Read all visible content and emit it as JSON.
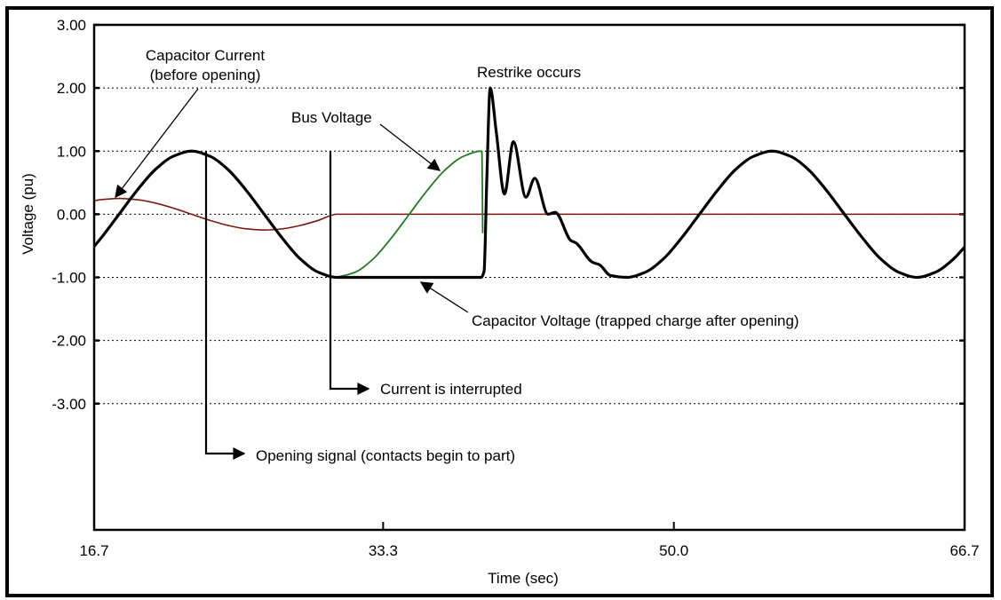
{
  "chart_data": {
    "type": "line",
    "title": "",
    "xlabel": "Time (sec)",
    "ylabel": "Voltage (pu)",
    "xlim": [
      16.7,
      66.7
    ],
    "ylim": [
      -5,
      3
    ],
    "grid": true,
    "x_ticks": [
      "16.7",
      "33.3",
      "50.0",
      "66.7"
    ],
    "x_tick_values": [
      16.7,
      33.3,
      50.0,
      66.7
    ],
    "y_ticks": [
      "3.00",
      "2.00",
      "1.00",
      "0.00",
      "-1.00",
      "-2.00",
      "-3.00"
    ],
    "y_tick_values": [
      3,
      2,
      1,
      0,
      -1,
      -2,
      -3
    ],
    "series": [
      {
        "id": "capacitor-voltage",
        "color": "#000000",
        "x": [
          16.7,
          17.09,
          18.13,
          19.17,
          20.22,
          21.26,
          22.3,
          23.34,
          24.38,
          25.43,
          26.47,
          27.51,
          28.55,
          29.59,
          30.64,
          38.93,
          39.1,
          39.25,
          39.45,
          39.8,
          40.27,
          40.78,
          41.5,
          42.01,
          42.77,
          43.18,
          44.1,
          44.35,
          45.32,
          45.73,
          46.35,
          47.3,
          48.35,
          49.39,
          50.43,
          51.47,
          52.51,
          53.55,
          54.6,
          55.64,
          56.68,
          57.72,
          58.76,
          59.8,
          60.85,
          61.89,
          62.93,
          63.97,
          65.01,
          66.06,
          66.7
        ],
        "y": [
          -0.51,
          -0.38,
          0,
          0.38,
          0.71,
          0.92,
          1,
          0.92,
          0.71,
          0.38,
          0,
          -0.38,
          -0.71,
          -0.92,
          -1,
          -1,
          -0.9,
          0.5,
          2.0,
          1.3,
          0.32,
          1.15,
          0.27,
          0.57,
          0.0,
          0.03,
          -0.42,
          -0.45,
          -0.76,
          -0.8,
          -0.97,
          -1.0,
          -0.92,
          -0.71,
          -0.38,
          0,
          0.38,
          0.71,
          0.92,
          1,
          0.92,
          0.71,
          0.38,
          0,
          -0.38,
          -0.71,
          -0.92,
          -1,
          -0.92,
          -0.71,
          -0.52
        ]
      },
      {
        "id": "bus-voltage",
        "color": "#1f7a1f",
        "x": [
          30.64,
          31.68,
          32.72,
          33.76,
          34.8,
          35.84,
          36.89,
          37.93,
          38.97,
          39.02
        ],
        "y": [
          -1,
          -0.92,
          -0.71,
          -0.38,
          0,
          0.38,
          0.71,
          0.92,
          1.0,
          -0.3
        ]
      },
      {
        "id": "capacitor-current",
        "color": "#7a1a10",
        "x": [
          16.7,
          17.09,
          18.13,
          19.17,
          20.22,
          21.26,
          22.3,
          23.34,
          24.38,
          25.43,
          26.47,
          27.51,
          28.55,
          29.59,
          30.64,
          66.7
        ],
        "y": [
          0.214,
          0.231,
          0.25,
          0.231,
          0.177,
          0.096,
          0,
          -0.096,
          -0.177,
          -0.231,
          -0.25,
          -0.231,
          -0.177,
          -0.096,
          0,
          0
        ]
      }
    ],
    "annotations": {
      "capacitor_current_line1": "Capacitor Current",
      "capacitor_current_line2": "(before opening)",
      "bus_voltage": "Bus Voltage",
      "restrike": "Restrike occurs",
      "capacitor_voltage": "Capacitor Voltage (trapped charge after opening)",
      "current_interrupted": "Current is interrupted",
      "opening_signal": "Opening signal (contacts begin to part)"
    },
    "markers": {
      "opening_signal_time": 23.13,
      "current_interrupted_time": 30.27
    }
  }
}
